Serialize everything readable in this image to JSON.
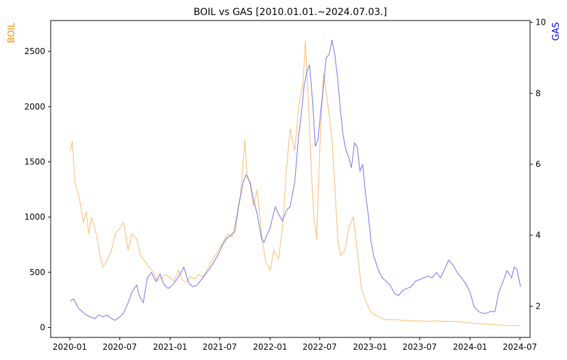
{
  "chart_data": {
    "type": "line",
    "title": "BOIL vs GAS [2010.01.01.~2024.07.03.]",
    "ylabel_left": "BOIL",
    "ylabel_right": "GAS",
    "xlim": [
      "2019-10-23",
      "2024-08-07"
    ],
    "ylim_left": [
      -90,
      2780
    ],
    "ylim_right": [
      1.12,
      10.05
    ],
    "x_ticks": [
      "2020-01",
      "2020-07",
      "2021-01",
      "2021-07",
      "2022-01",
      "2022-07",
      "2023-01",
      "2023-07",
      "2024-01",
      "2024-07"
    ],
    "y_left_ticks": [
      0,
      500,
      1000,
      1500,
      2000,
      2500
    ],
    "y_right_ticks": [
      2,
      4,
      6,
      8,
      10
    ],
    "grid": false,
    "colors": {
      "BOIL": "#FDB462",
      "GAS": "#5B5BEF",
      "ylabel_left": "#FF8C00",
      "ylabel_right": "#0000FF"
    },
    "series": [
      {
        "name": "BOIL",
        "axis": "left",
        "x": [
          "2020-01-02",
          "2020-01-10",
          "2020-01-20",
          "2020-02-01",
          "2020-02-10",
          "2020-02-20",
          "2020-03-01",
          "2020-03-10",
          "2020-03-20",
          "2020-04-01",
          "2020-04-10",
          "2020-04-20",
          "2020-05-01",
          "2020-05-15",
          "2020-06-01",
          "2020-06-15",
          "2020-07-01",
          "2020-07-15",
          "2020-08-01",
          "2020-08-15",
          "2020-09-01",
          "2020-09-15",
          "2020-10-01",
          "2020-10-15",
          "2020-11-01",
          "2020-11-15",
          "2020-12-01",
          "2020-12-15",
          "2021-01-01",
          "2021-01-15",
          "2021-02-01",
          "2021-02-15",
          "2021-03-01",
          "2021-03-15",
          "2021-04-01",
          "2021-04-15",
          "2021-05-01",
          "2021-05-15",
          "2021-06-01",
          "2021-06-15",
          "2021-07-01",
          "2021-07-15",
          "2021-08-01",
          "2021-08-15",
          "2021-09-01",
          "2021-09-15",
          "2021-10-01",
          "2021-10-08",
          "2021-10-20",
          "2021-11-01",
          "2021-11-15",
          "2021-12-01",
          "2021-12-15",
          "2022-01-01",
          "2022-01-15",
          "2022-02-01",
          "2022-02-15",
          "2022-03-01",
          "2022-03-15",
          "2022-04-01",
          "2022-04-15",
          "2022-05-01",
          "2022-05-10",
          "2022-05-20",
          "2022-06-01",
          "2022-06-10",
          "2022-06-20",
          "2022-07-01",
          "2022-07-15",
          "2022-08-01",
          "2022-08-15",
          "2022-08-25",
          "2022-09-05",
          "2022-09-15",
          "2022-10-01",
          "2022-10-15",
          "2022-11-01",
          "2022-11-15",
          "2022-12-01",
          "2022-12-15",
          "2023-01-01",
          "2023-01-15",
          "2023-02-01",
          "2023-02-15",
          "2023-03-01",
          "2023-04-01",
          "2023-05-01",
          "2023-06-01",
          "2023-07-01",
          "2023-08-01",
          "2023-09-01",
          "2023-10-01",
          "2023-11-01",
          "2023-12-01",
          "2024-01-01",
          "2024-02-01",
          "2024-03-01",
          "2024-04-01",
          "2024-05-01",
          "2024-06-01",
          "2024-07-03"
        ],
        "values": [
          1600,
          1690,
          1300,
          1210,
          1100,
          950,
          1050,
          850,
          1000,
          900,
          800,
          650,
          550,
          600,
          700,
          850,
          900,
          950,
          700,
          850,
          800,
          650,
          600,
          550,
          500,
          420,
          450,
          480,
          450,
          420,
          520,
          430,
          410,
          460,
          440,
          480,
          460,
          520,
          600,
          650,
          720,
          780,
          850,
          820,
          1000,
          1200,
          1700,
          1400,
          1300,
          1100,
          1250,
          850,
          600,
          520,
          700,
          620,
          900,
          1400,
          1800,
          1600,
          2000,
          2200,
          2600,
          2100,
          1400,
          1000,
          800,
          1600,
          2300,
          2000,
          1700,
          1300,
          800,
          650,
          700,
          900,
          1000,
          700,
          350,
          250,
          150,
          120,
          100,
          80,
          70,
          70,
          65,
          60,
          60,
          55,
          60,
          55,
          55,
          50,
          40,
          35,
          30,
          25,
          20,
          18,
          15
        ]
      },
      {
        "name": "GAS",
        "axis": "right",
        "x": [
          "2020-01-02",
          "2020-01-15",
          "2020-02-01",
          "2020-02-15",
          "2020-03-01",
          "2020-03-15",
          "2020-04-01",
          "2020-04-15",
          "2020-05-01",
          "2020-05-15",
          "2020-06-01",
          "2020-06-15",
          "2020-07-01",
          "2020-07-15",
          "2020-08-01",
          "2020-08-15",
          "2020-09-01",
          "2020-09-10",
          "2020-09-25",
          "2020-10-10",
          "2020-10-25",
          "2020-11-10",
          "2020-11-25",
          "2020-12-10",
          "2020-12-25",
          "2021-01-10",
          "2021-01-25",
          "2021-02-10",
          "2021-02-20",
          "2021-03-10",
          "2021-03-25",
          "2021-04-10",
          "2021-04-25",
          "2021-05-10",
          "2021-05-25",
          "2021-06-10",
          "2021-06-25",
          "2021-07-10",
          "2021-07-25",
          "2021-08-10",
          "2021-08-25",
          "2021-09-10",
          "2021-09-25",
          "2021-10-05",
          "2021-10-20",
          "2021-11-01",
          "2021-11-15",
          "2021-12-01",
          "2021-12-10",
          "2021-12-20",
          "2022-01-01",
          "2022-01-10",
          "2022-01-20",
          "2022-02-01",
          "2022-02-15",
          "2022-03-01",
          "2022-03-15",
          "2022-04-01",
          "2022-04-15",
          "2022-04-25",
          "2022-05-05",
          "2022-05-15",
          "2022-05-25",
          "2022-06-05",
          "2022-06-15",
          "2022-06-25",
          "2022-07-05",
          "2022-07-15",
          "2022-07-25",
          "2022-08-05",
          "2022-08-15",
          "2022-08-25",
          "2022-09-05",
          "2022-09-15",
          "2022-09-25",
          "2022-10-05",
          "2022-10-15",
          "2022-10-25",
          "2022-11-05",
          "2022-11-15",
          "2022-11-25",
          "2022-12-05",
          "2022-12-15",
          "2022-12-25",
          "2023-01-05",
          "2023-01-15",
          "2023-02-01",
          "2023-02-15",
          "2023-03-01",
          "2023-03-15",
          "2023-04-01",
          "2023-04-15",
          "2023-05-01",
          "2023-05-15",
          "2023-06-01",
          "2023-06-15",
          "2023-07-01",
          "2023-07-15",
          "2023-08-01",
          "2023-08-15",
          "2023-09-01",
          "2023-09-15",
          "2023-10-01",
          "2023-10-15",
          "2023-11-01",
          "2023-11-15",
          "2023-12-01",
          "2023-12-15",
          "2024-01-01",
          "2024-01-15",
          "2024-02-01",
          "2024-02-15",
          "2024-03-01",
          "2024-03-15",
          "2024-04-01",
          "2024-04-15",
          "2024-05-01",
          "2024-05-15",
          "2024-06-01",
          "2024-06-10",
          "2024-06-20",
          "2024-07-03"
        ],
        "values": [
          2.15,
          2.2,
          1.95,
          1.85,
          1.75,
          1.7,
          1.65,
          1.75,
          1.7,
          1.75,
          1.65,
          1.6,
          1.7,
          1.8,
          2.1,
          2.4,
          2.6,
          2.3,
          2.1,
          2.8,
          2.95,
          2.7,
          2.9,
          2.6,
          2.5,
          2.6,
          2.75,
          2.95,
          3.1,
          2.65,
          2.55,
          2.6,
          2.75,
          2.9,
          3.05,
          3.25,
          3.45,
          3.7,
          3.9,
          4.0,
          4.1,
          4.9,
          5.5,
          5.7,
          5.5,
          5.0,
          4.6,
          3.9,
          3.8,
          4.0,
          4.2,
          4.5,
          4.8,
          4.6,
          4.4,
          4.7,
          4.8,
          5.5,
          6.8,
          7.4,
          8.2,
          8.6,
          8.8,
          7.8,
          6.5,
          6.7,
          7.5,
          8.2,
          9.0,
          9.1,
          9.5,
          9.1,
          8.4,
          7.5,
          6.8,
          6.4,
          6.2,
          5.9,
          6.6,
          6.5,
          5.8,
          6.0,
          5.2,
          4.6,
          3.8,
          3.4,
          3.0,
          2.8,
          2.7,
          2.6,
          2.35,
          2.3,
          2.45,
          2.5,
          2.55,
          2.7,
          2.75,
          2.8,
          2.85,
          2.8,
          2.95,
          2.8,
          3.05,
          3.3,
          3.15,
          2.95,
          2.8,
          2.65,
          2.4,
          2.0,
          1.85,
          1.8,
          1.8,
          1.85,
          1.85,
          2.4,
          2.7,
          3.0,
          2.8,
          3.1,
          3.05,
          2.55
        ]
      }
    ]
  }
}
